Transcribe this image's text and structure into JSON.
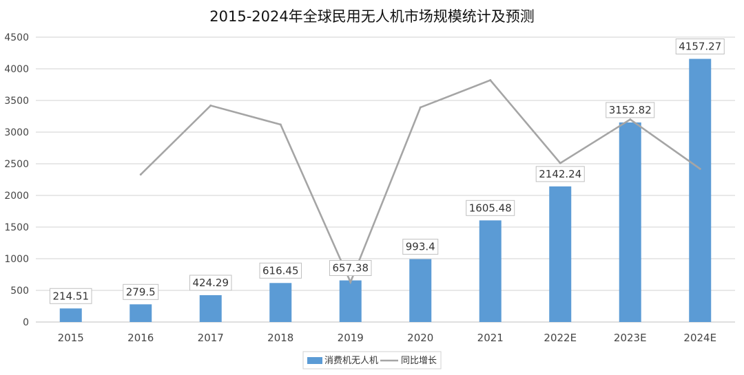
{
  "chart_data": {
    "type": "bar",
    "title": "2015-2024年全球民用无人机市场规模统计及预测",
    "categories": [
      "2015",
      "2016",
      "2017",
      "2018",
      "2019",
      "2020",
      "2021",
      "2022E",
      "2023E",
      "2024E"
    ],
    "series": [
      {
        "name": "消费机无人机",
        "type": "bar",
        "color": "#5B9BD5",
        "values": [
          214.51,
          279.5,
          424.29,
          616.45,
          657.38,
          993.4,
          1605.48,
          2142.24,
          3152.82,
          4157.27
        ],
        "data_labels": [
          "214.51",
          "279.5",
          "424.29",
          "616.45",
          "657.38",
          "993.4",
          "1605.48",
          "2142.24",
          "3152.82",
          "4157.27"
        ]
      },
      {
        "name": "同比增长",
        "type": "line",
        "color": "#A5A5A5",
        "values": [
          null,
          2330,
          3420,
          3120,
          630,
          3390,
          3820,
          2510,
          3200,
          2420
        ]
      }
    ],
    "ylim": [
      0,
      4500
    ],
    "yticks": [
      0,
      500,
      1000,
      1500,
      2000,
      2500,
      3000,
      3500,
      4000,
      4500
    ],
    "grid": true,
    "legend": "bottom"
  }
}
